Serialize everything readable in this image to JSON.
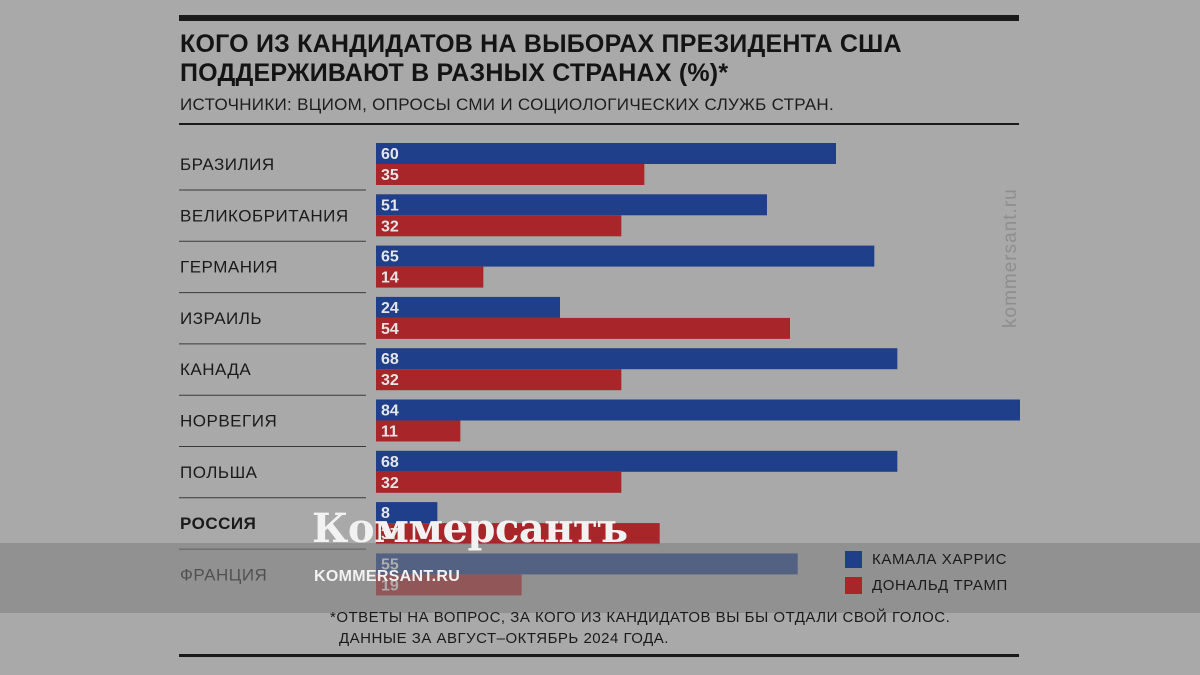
{
  "title": "КОГО ИЗ КАНДИДАТОВ НА ВЫБОРАХ ПРЕЗИДЕНТА США ПОДДЕРЖИВАЮТ В РАЗНЫХ СТРАНАХ (%)*",
  "subtitle": "ИСТОЧНИКИ: ВЦИОМ, ОПРОСЫ СМИ И СОЦИОЛОГИЧЕСКИХ СЛУЖБ СТРАН.",
  "footnote": {
    "line1": "*ОТВЕТЫ НА ВОПРОС, ЗА КОГО ИЗ КАНДИДАТОВ ВЫ БЫ ОТДАЛИ СВОЙ ГОЛОС.",
    "line2": "ДАННЫЕ ЗА АВГУСТ–ОКТЯБРЬ 2024 ГОДА."
  },
  "watermark": {
    "vertical": "kommersant.ru",
    "logo": "Коммерсантъ",
    "site": "KOMMERSANT.RU"
  },
  "chart_data": {
    "type": "bar",
    "orientation": "horizontal",
    "categories": [
      "БРАЗИЛИЯ",
      "ВЕЛИКОБРИТАНИЯ",
      "ГЕРМАНИЯ",
      "ИЗРАИЛЬ",
      "КАНАДА",
      "НОРВЕГИЯ",
      "ПОЛЬША",
      "РОССИЯ",
      "ФРАНЦИЯ"
    ],
    "highlight_category": "РОССИЯ",
    "series": [
      {
        "name": "КАМАЛА ХАРРИС",
        "color": "#1f3f8a",
        "values": [
          60,
          51,
          65,
          24,
          68,
          84,
          68,
          8,
          55
        ]
      },
      {
        "name": "ДОНАЛЬД ТРАМП",
        "color": "#a8262a",
        "values": [
          35,
          32,
          14,
          54,
          32,
          11,
          32,
          37,
          19
        ]
      }
    ],
    "xlim": [
      0,
      84
    ],
    "legend_position": "bottom-right",
    "grid": false
  }
}
